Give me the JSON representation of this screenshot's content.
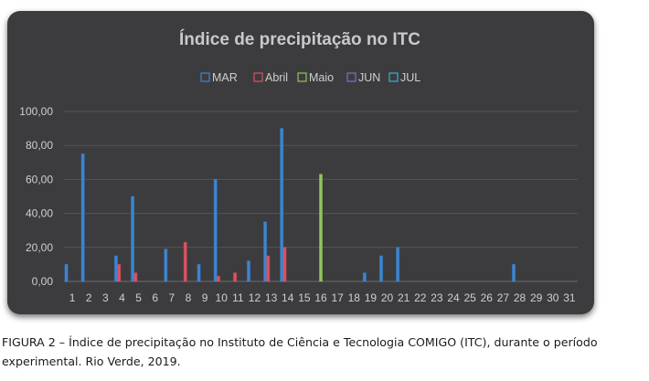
{
  "caption": "FIGURA 2 – Índice de precipitação no Instituto de Ciência e Tecnologia COMIGO (ITC), durante o período experimental. Rio Verde, 2019.",
  "chart_data": {
    "type": "bar",
    "title": "Índice de precipitação no ITC",
    "xlabel": "",
    "ylabel": "",
    "categories": [
      "1",
      "2",
      "3",
      "4",
      "5",
      "6",
      "7",
      "8",
      "9",
      "10",
      "11",
      "12",
      "13",
      "14",
      "15",
      "16",
      "17",
      "18",
      "19",
      "20",
      "21",
      "22",
      "23",
      "24",
      "25",
      "26",
      "27",
      "28",
      "29",
      "30",
      "31"
    ],
    "ylim": [
      0,
      100
    ],
    "yticks": [
      "0,00",
      "20,00",
      "40,00",
      "60,00",
      "80,00",
      "100,00"
    ],
    "grid": true,
    "legend_position": "top",
    "series": [
      {
        "name": "MAR",
        "color": "#3a86d4",
        "values": [
          10,
          75,
          0,
          15,
          50,
          0,
          19,
          0,
          10,
          60,
          0,
          12,
          35,
          90,
          0,
          0,
          0,
          0,
          5,
          15,
          20,
          0,
          0,
          0,
          0,
          0,
          0,
          10,
          0,
          0,
          0
        ]
      },
      {
        "name": "Abril",
        "color": "#e05060",
        "values": [
          0,
          0,
          0,
          10,
          5,
          0,
          0,
          23,
          0,
          3,
          5,
          0,
          15,
          20,
          0,
          0,
          0,
          0,
          0,
          0,
          0,
          0,
          0,
          0,
          0,
          0,
          0,
          0,
          0,
          0,
          0
        ]
      },
      {
        "name": "Maio",
        "color": "#8fc45a",
        "values": [
          0,
          0,
          0,
          0,
          0,
          0,
          0,
          0,
          0,
          0,
          0,
          0,
          0,
          0,
          0,
          63,
          0,
          0,
          0,
          0,
          0,
          0,
          0,
          0,
          0,
          0,
          0,
          0,
          0,
          0,
          0
        ]
      },
      {
        "name": "JUN",
        "color": "#8a68c0",
        "values": [
          0,
          0,
          0,
          0,
          0,
          0,
          0,
          0,
          0,
          0,
          0,
          0,
          0,
          0,
          0,
          0,
          0,
          0,
          0,
          0,
          0,
          0,
          0,
          0,
          0,
          0,
          0,
          0,
          0,
          0,
          0
        ]
      },
      {
        "name": "JUL",
        "color": "#33b3cc",
        "values": [
          0,
          0,
          0,
          0,
          0,
          0,
          0,
          0,
          0,
          0,
          0,
          0,
          0,
          0,
          0,
          0,
          0,
          0,
          0,
          0,
          0,
          0,
          0,
          0,
          0,
          0,
          0,
          0,
          0,
          0,
          0
        ]
      }
    ]
  }
}
